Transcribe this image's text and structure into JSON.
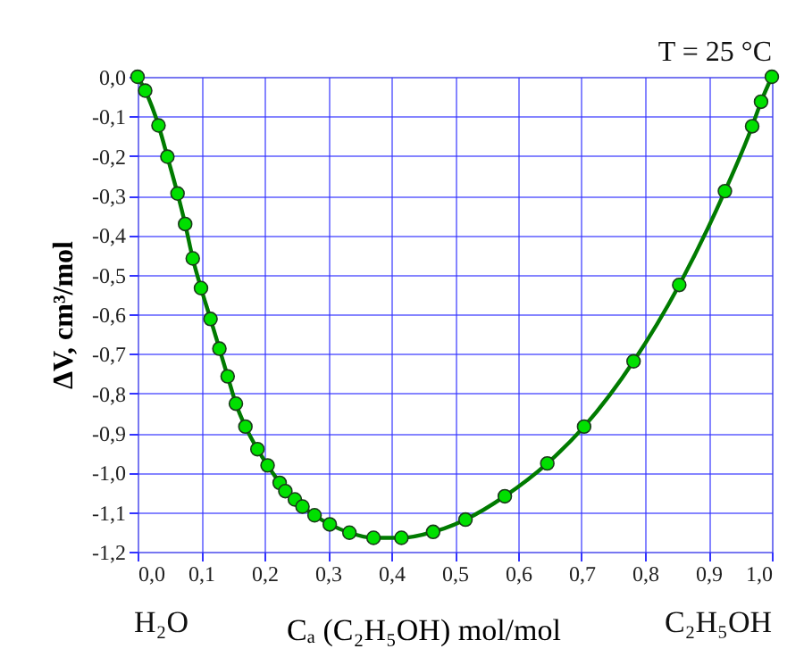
{
  "chart_data": {
    "type": "line",
    "xlabel": "Cₐ (C₂H₅OH) mol/mol",
    "ylabel": "ΔV, cm³/mol",
    "annotations": [
      "T = 25 °C",
      "H₂O",
      "C₂H₅OH"
    ],
    "x": [
      0,
      0.012,
      0.033,
      0.047,
      0.063,
      0.075,
      0.087,
      0.1,
      0.115,
      0.129,
      0.142,
      0.155,
      0.17,
      0.189,
      0.205,
      0.224,
      0.233,
      0.248,
      0.26,
      0.279,
      0.303,
      0.334,
      0.372,
      0.416,
      0.466,
      0.517,
      0.579,
      0.646,
      0.704,
      0.782,
      0.854,
      0.926,
      0.969,
      0.983,
      1.0
    ],
    "series": [
      {
        "color": "#00e000",
        "values": [
          0,
          -0.035,
          -0.123,
          -0.202,
          -0.295,
          -0.372,
          -0.459,
          -0.534,
          -0.612,
          -0.687,
          -0.757,
          -0.826,
          -0.884,
          -0.941,
          -0.982,
          -1.026,
          -1.047,
          -1.068,
          -1.086,
          -1.108,
          -1.131,
          -1.152,
          -1.165,
          -1.165,
          -1.15,
          -1.119,
          -1.06,
          -0.977,
          -0.884,
          -0.719,
          -0.526,
          -0.289,
          -0.125,
          -0.063,
          0
        ]
      }
    ],
    "xlim": [
      0,
      1
    ],
    "ylim": [
      -1.2,
      0
    ],
    "xticks": [
      {
        "value": 0,
        "label": "0,0"
      },
      {
        "value": 0.1,
        "label": "0,1"
      },
      {
        "value": 0.2,
        "label": "0,2"
      },
      {
        "value": 0.3,
        "label": "0,3"
      },
      {
        "value": 0.4,
        "label": "0,4"
      },
      {
        "value": 0.5,
        "label": "0,5"
      },
      {
        "value": 0.6,
        "label": "0,6"
      },
      {
        "value": 0.7,
        "label": "0,7"
      },
      {
        "value": 0.8,
        "label": "0,8"
      },
      {
        "value": 0.9,
        "label": "0,9"
      },
      {
        "value": 1,
        "label": "1,0"
      }
    ],
    "yticks": [
      {
        "value": 0,
        "label": "0,0"
      },
      {
        "value": -0.1,
        "label": "-0,1"
      },
      {
        "value": -0.2,
        "label": "-0,2"
      },
      {
        "value": -0.3,
        "label": "-0,3"
      },
      {
        "value": -0.4,
        "label": "-0,4"
      },
      {
        "value": -0.5,
        "label": "-0,5"
      },
      {
        "value": -0.6,
        "label": "-0,6"
      },
      {
        "value": -0.7,
        "label": "-0,7"
      },
      {
        "value": -0.8,
        "label": "-0,8"
      },
      {
        "value": -0.9,
        "label": "-0,9"
      },
      {
        "value": -1.0,
        "label": "-1,0"
      },
      {
        "value": -1.1,
        "label": "-1,1"
      },
      {
        "value": -1.2,
        "label": "-1,2"
      }
    ],
    "grid": true,
    "marker": "circle",
    "line_style": "solid"
  }
}
